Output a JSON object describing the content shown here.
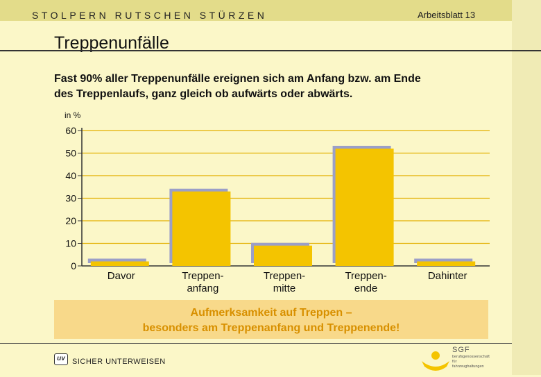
{
  "header": {
    "series_title": "STOLPERN  RUTSCHEN  STÜRZEN",
    "sheet_number": "Arbeitsblatt 13"
  },
  "page_title": "Treppenunfälle",
  "intro": {
    "line1": "Fast 90% aller Treppenunfälle ereignen sich am Anfang bzw. am Ende",
    "line2": "des Treppenlaufs, ganz gleich ob aufwärts oder abwärts."
  },
  "chart_data": {
    "type": "bar",
    "unit_label": "in %",
    "categories": [
      [
        "Davor"
      ],
      [
        "Treppen-",
        "anfang"
      ],
      [
        "Treppen-",
        "mitte"
      ],
      [
        "Treppen-",
        "ende"
      ],
      [
        "Dahinter"
      ]
    ],
    "values": [
      2,
      33,
      9,
      52,
      2
    ],
    "yticks": [
      0,
      10,
      20,
      30,
      40,
      50,
      60
    ],
    "ylim": [
      0,
      60
    ],
    "bar_color": "#f4c400",
    "shadow_color": "#9b9fc8",
    "gridline_color": "#e2b000",
    "axis_color": "#333333"
  },
  "callout": {
    "line1": "Aufmerksamkeit auf Treppen –",
    "line2": "besonders am Treppenanfang und Treppenende!"
  },
  "footer": {
    "logo_text": "uv",
    "label": "SICHER UNTERWEISEN",
    "org_mark": "SGF",
    "org_line1": "berufsgenossenschaft",
    "org_line2": "für",
    "org_line3": "fahrzeughaltungen"
  }
}
